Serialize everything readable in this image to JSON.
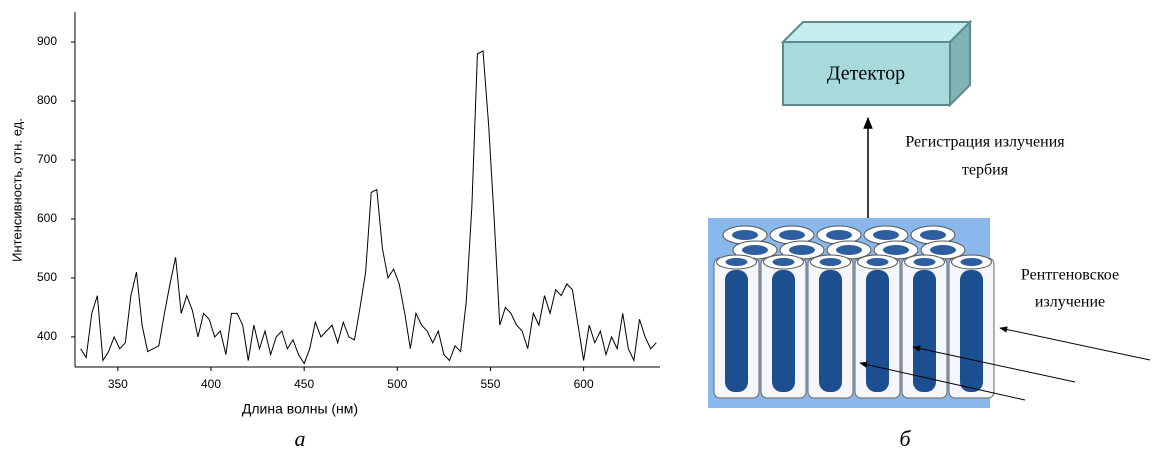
{
  "chart_data": {
    "type": "line",
    "x_label": "Длина волны (нм)",
    "y_label": "Интенсивность, отн. ед.",
    "x": [
      330,
      333,
      336,
      339,
      342,
      345,
      348,
      351,
      354,
      357,
      360,
      363,
      366,
      369,
      372,
      375,
      378,
      381,
      384,
      387,
      390,
      393,
      396,
      399,
      402,
      405,
      408,
      411,
      414,
      417,
      420,
      423,
      426,
      429,
      432,
      435,
      438,
      441,
      444,
      447,
      450,
      453,
      456,
      459,
      462,
      465,
      468,
      471,
      474,
      477,
      480,
      483,
      486,
      489,
      492,
      495,
      498,
      501,
      504,
      507,
      510,
      513,
      516,
      519,
      522,
      525,
      528,
      531,
      534,
      537,
      540,
      543,
      546,
      549,
      552,
      555,
      558,
      561,
      564,
      567,
      570,
      573,
      576,
      579,
      582,
      585,
      588,
      591,
      594,
      597,
      600,
      603,
      606,
      609,
      612,
      615,
      618,
      621,
      624,
      627,
      630,
      633,
      636,
      639
    ],
    "values": [
      380,
      365,
      440,
      470,
      360,
      375,
      400,
      380,
      390,
      470,
      510,
      420,
      375,
      380,
      385,
      440,
      490,
      535,
      440,
      470,
      445,
      400,
      440,
      430,
      400,
      410,
      370,
      440,
      440,
      420,
      360,
      420,
      380,
      410,
      370,
      400,
      410,
      380,
      395,
      370,
      355,
      380,
      425,
      400,
      410,
      420,
      390,
      425,
      400,
      395,
      450,
      510,
      645,
      650,
      550,
      500,
      515,
      490,
      440,
      380,
      440,
      420,
      410,
      390,
      410,
      370,
      360,
      385,
      375,
      460,
      620,
      880,
      885,
      760,
      600,
      420,
      450,
      440,
      420,
      410,
      380,
      440,
      420,
      470,
      440,
      480,
      470,
      490,
      480,
      420,
      360,
      420,
      390,
      410,
      370,
      400,
      380,
      440,
      380,
      360,
      430,
      400,
      380,
      390
    ],
    "color": "#000000",
    "xlim": [
      327,
      641
    ],
    "ylim": [
      349,
      951
    ],
    "xticks": [
      350,
      400,
      450,
      500,
      550,
      600
    ],
    "yticks": [
      400,
      500,
      600,
      700,
      800,
      900
    ],
    "grid": false
  },
  "diagram": {
    "detector": "Детектор",
    "registration_label": [
      "Регистрация излучения",
      "тербия"
    ],
    "xray_label": [
      "Рентгеновское",
      "излучение"
    ]
  },
  "captions": {
    "a": "а",
    "b": "б"
  }
}
